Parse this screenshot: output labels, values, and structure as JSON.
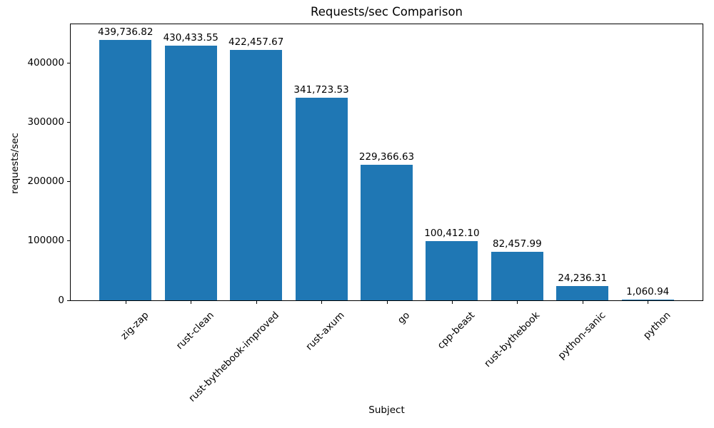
{
  "chart_data": {
    "type": "bar",
    "title": "Requests/sec Comparison",
    "xlabel": "Subject",
    "ylabel": "requests/sec",
    "categories": [
      "zig-zap",
      "rust-clean",
      "rust-bythebook-improved",
      "rust-axum",
      "go",
      "cpp-beast",
      "rust-bythebook",
      "python-sanic",
      "python"
    ],
    "values": [
      439736.82,
      430433.55,
      422457.67,
      341723.53,
      229366.63,
      100412.1,
      82457.99,
      24236.31,
      1060.94
    ],
    "value_labels": [
      "439,736.82",
      "430,433.55",
      "422,457.67",
      "341,723.53",
      "229,366.63",
      "100,412.10",
      "82,457.99",
      "24,236.31",
      "1,060.94"
    ],
    "yticks": [
      0,
      100000,
      200000,
      300000,
      400000
    ],
    "ytick_labels": [
      "0",
      "100000",
      "200000",
      "300000",
      "400000"
    ],
    "ylim": [
      0,
      466000
    ],
    "bar_color": "#1f77b4",
    "grid": false,
    "legend_position": "none"
  }
}
